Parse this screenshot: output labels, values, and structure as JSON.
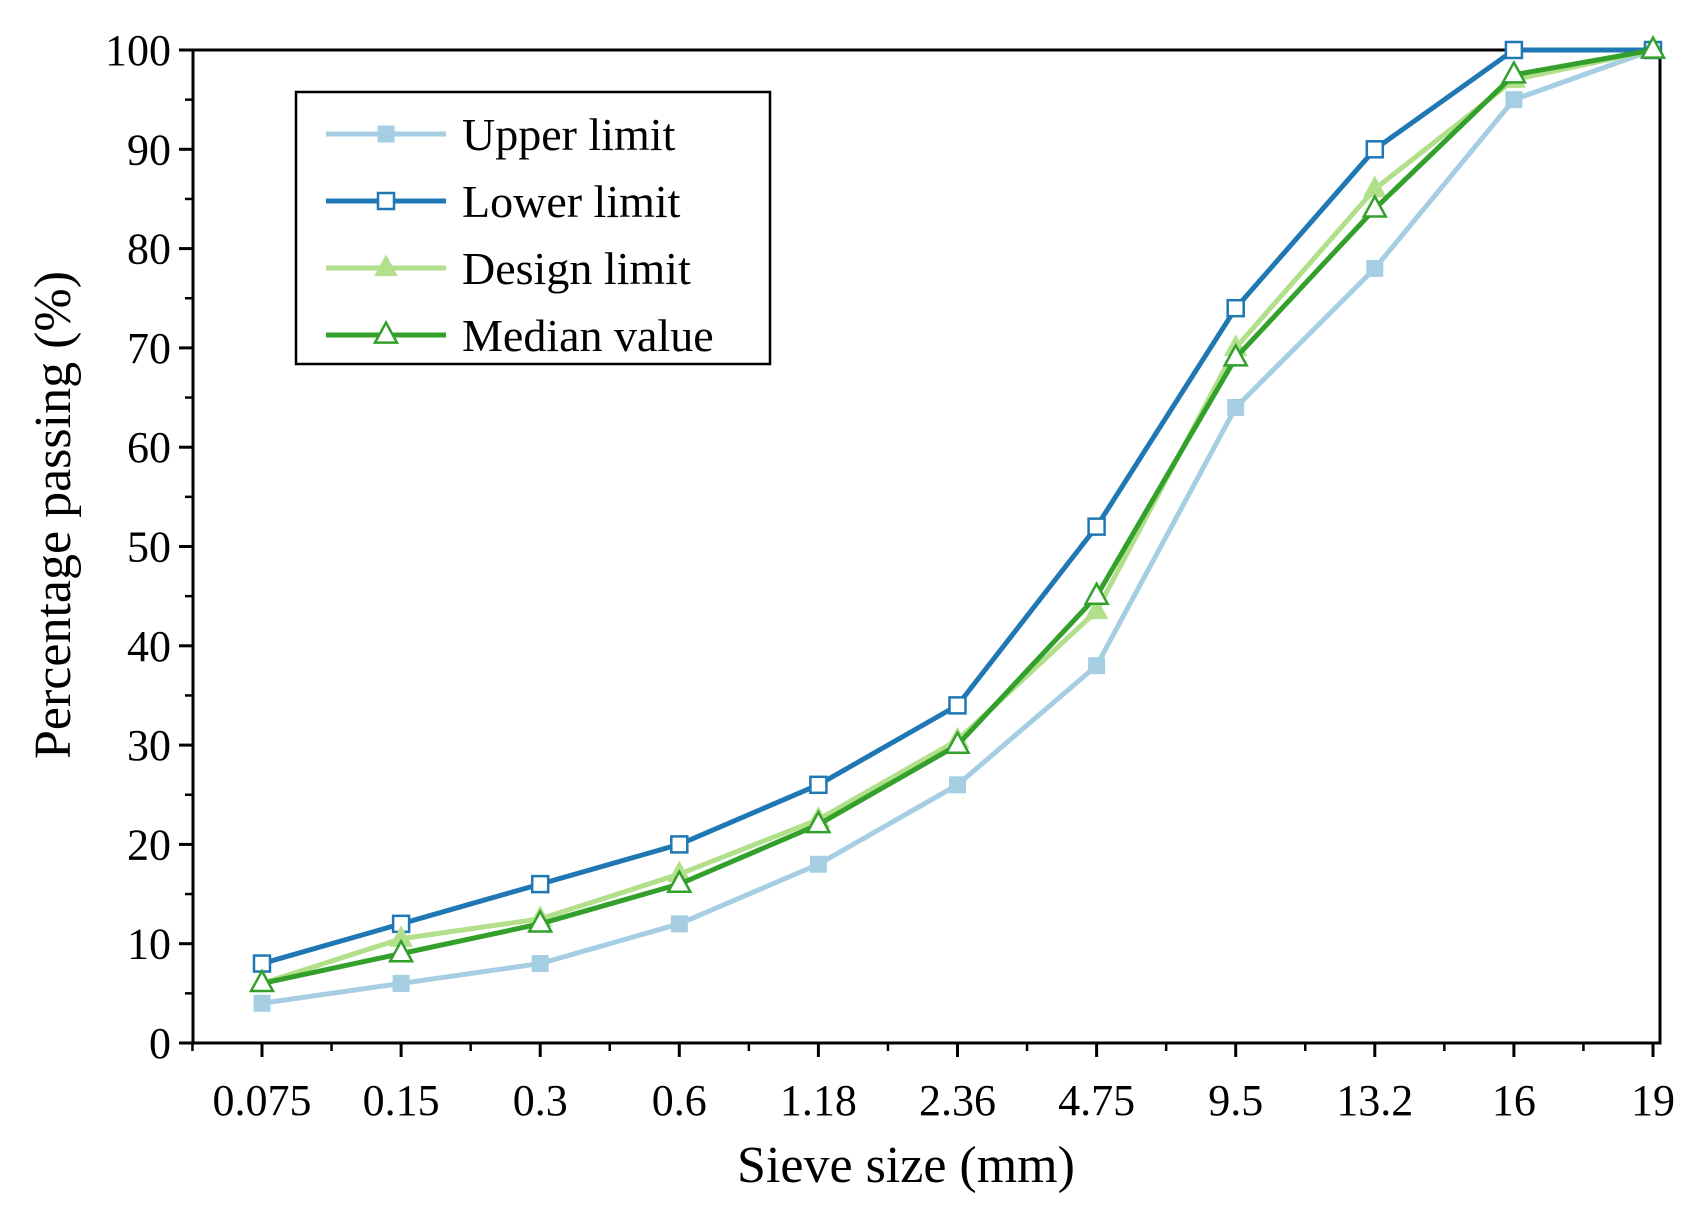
{
  "chart_data": {
    "type": "line",
    "title": "",
    "xlabel": "Sieve size (mm)",
    "ylabel": "Percentage passing (%)",
    "categories": [
      "0.075",
      "0.15",
      "0.3",
      "0.6",
      "1.18",
      "2.36",
      "4.75",
      "9.5",
      "13.2",
      "16",
      "19"
    ],
    "ylim": [
      0,
      100
    ],
    "yticks": [
      "0",
      "10",
      "20",
      "30",
      "40",
      "50",
      "60",
      "70",
      "80",
      "90",
      "100"
    ],
    "grid": false,
    "legend_position": "top-left",
    "series": [
      {
        "name": "Upper limit",
        "values": [
          4,
          6,
          8,
          12,
          18,
          26,
          38,
          64,
          78,
          95,
          100
        ],
        "color": "#a6cee3",
        "marker": "filled-square"
      },
      {
        "name": "Lower limit",
        "values": [
          8,
          12,
          16,
          20,
          26,
          34,
          52,
          74,
          90,
          100,
          100
        ],
        "color": "#1f78b4",
        "marker": "open-square"
      },
      {
        "name": "Design limit",
        "values": [
          6,
          10.5,
          12.5,
          17,
          22.5,
          30.5,
          43.5,
          70,
          86,
          97,
          100
        ],
        "color": "#b2df8a",
        "marker": "filled-triangle"
      },
      {
        "name": "Median value",
        "values": [
          6,
          9,
          12,
          16,
          22,
          30,
          45,
          69,
          84,
          97.5,
          100
        ],
        "color": "#33a02c",
        "marker": "open-triangle"
      }
    ]
  }
}
